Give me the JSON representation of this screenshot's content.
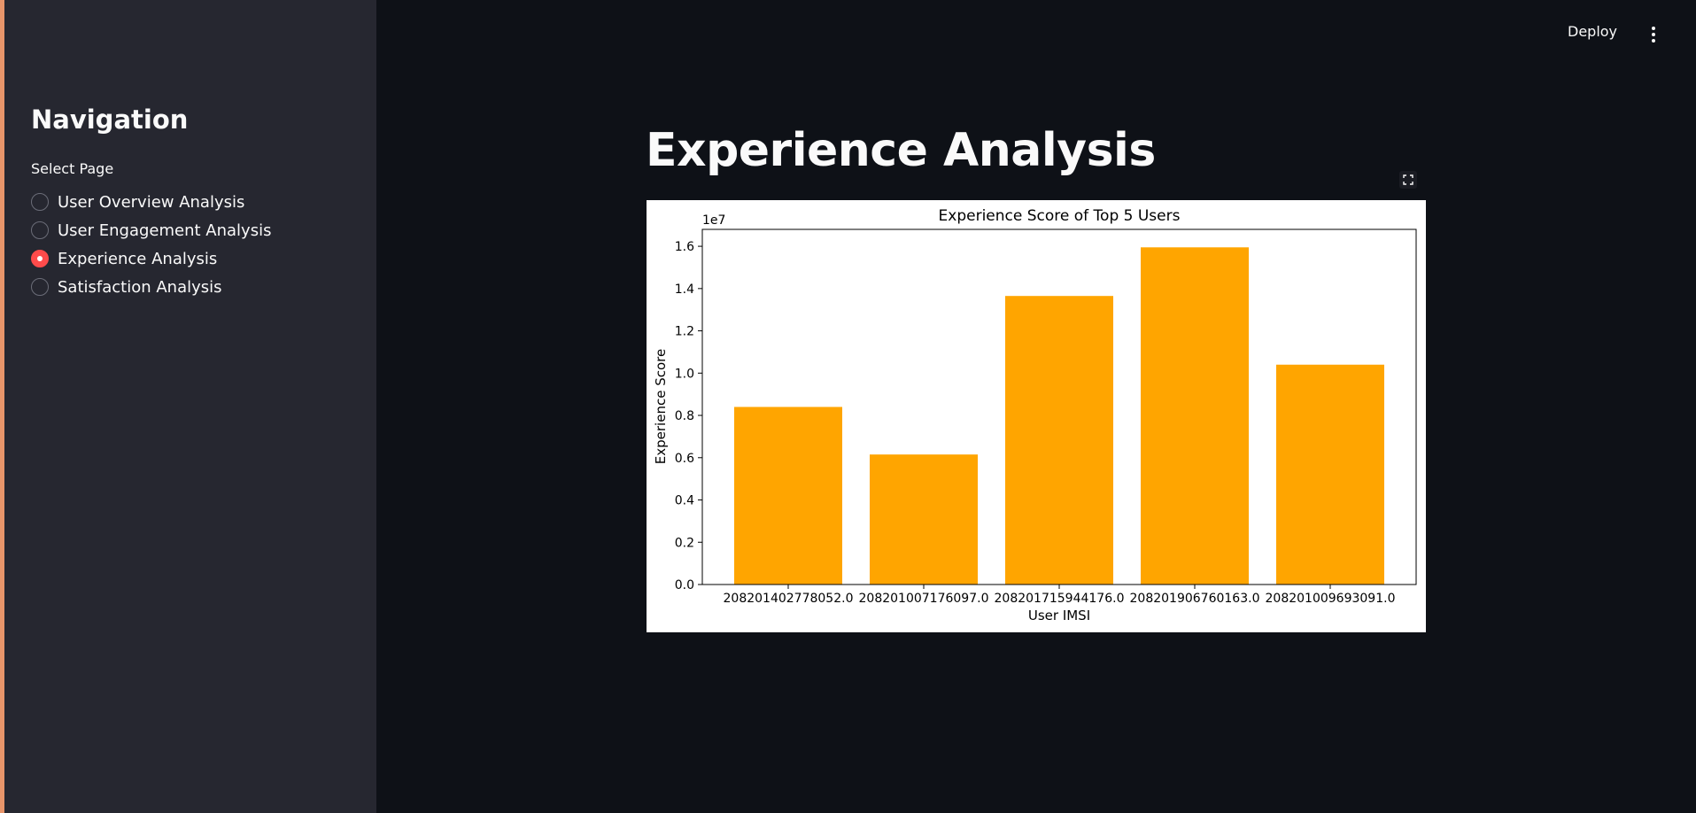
{
  "sidebar": {
    "title": "Navigation",
    "select_label": "Select Page",
    "options": [
      {
        "label": "User Overview Analysis",
        "selected": false
      },
      {
        "label": "User Engagement Analysis",
        "selected": false
      },
      {
        "label": "Experience Analysis",
        "selected": true
      },
      {
        "label": "Satisfaction Analysis",
        "selected": false
      }
    ]
  },
  "header": {
    "deploy_label": "Deploy",
    "menu_icon": "kebab-menu-icon"
  },
  "main": {
    "title": "Experience Analysis",
    "fullscreen_icon": "fullscreen-icon"
  },
  "colors": {
    "bar": "#ffa500",
    "accent": "#ff4b4b"
  },
  "chart_data": {
    "type": "bar",
    "title": "Experience Score of Top 5 Users",
    "xlabel": "User IMSI",
    "ylabel": "Experience Score",
    "scale_label": "1e7",
    "categories": [
      "208201402778052.0",
      "208201007176097.0",
      "208201715944176.0",
      "208201906760163.0",
      "208201009693091.0"
    ],
    "values": [
      8400000,
      6150000,
      13650000,
      15950000,
      10400000
    ],
    "ylim": [
      0,
      16800000
    ],
    "yticks": [
      0,
      2000000,
      4000000,
      6000000,
      8000000,
      10000000,
      12000000,
      14000000,
      16000000
    ],
    "ytick_labels": [
      "0.0",
      "0.2",
      "0.4",
      "0.6",
      "0.8",
      "1.0",
      "1.2",
      "1.4",
      "1.6"
    ]
  }
}
